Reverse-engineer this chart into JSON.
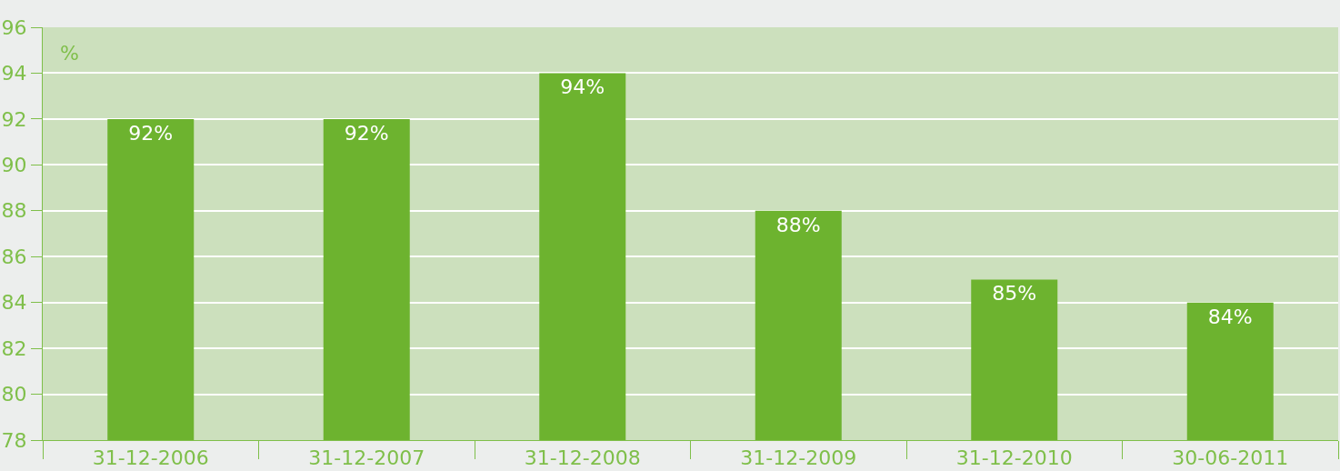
{
  "chart_data": {
    "type": "bar",
    "ylabel": "%",
    "categories": [
      "31-12-2006",
      "31-12-2007",
      "31-12-2008",
      "31-12-2009",
      "31-12-2010",
      "30-06-2011"
    ],
    "values": [
      92,
      92,
      94,
      88,
      85,
      84
    ],
    "value_labels": [
      "92%",
      "92%",
      "94%",
      "88%",
      "85%",
      "84%"
    ],
    "color": "#6db32f",
    "ylim": [
      78,
      96
    ],
    "yticks": [
      78,
      80,
      82,
      84,
      86,
      88,
      90,
      92,
      94,
      96
    ],
    "grid": "y",
    "legend": false
  }
}
